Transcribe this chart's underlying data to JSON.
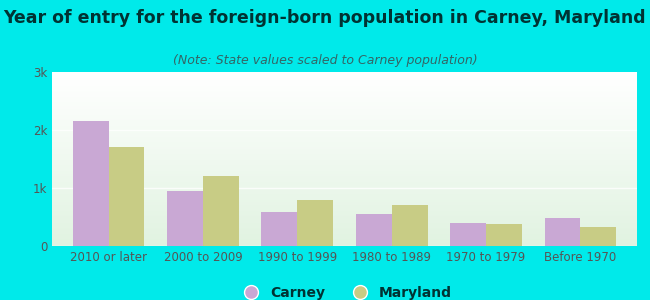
{
  "title": "Year of entry for the foreign-born population in Carney, Maryland",
  "subtitle": "(Note: State values scaled to Carney population)",
  "categories": [
    "2010 or later",
    "2000 to 2009",
    "1990 to 1999",
    "1980 to 1989",
    "1970 to 1979",
    "Before 1970"
  ],
  "carney_values": [
    2150,
    950,
    580,
    560,
    400,
    480
  ],
  "maryland_values": [
    1700,
    1200,
    800,
    700,
    380,
    330
  ],
  "carney_color": "#c9a8d4",
  "maryland_color": "#c8cc85",
  "background_outer": "#00eaea",
  "ylim": [
    0,
    3000
  ],
  "yticks": [
    0,
    1000,
    2000,
    3000
  ],
  "ytick_labels": [
    "0",
    "1k",
    "2k",
    "3k"
  ],
  "bar_width": 0.38,
  "legend_labels": [
    "Carney",
    "Maryland"
  ],
  "title_fontsize": 12.5,
  "subtitle_fontsize": 9,
  "tick_fontsize": 8.5,
  "legend_fontsize": 10,
  "title_color": "#003333",
  "subtitle_color": "#336666",
  "tick_color": "#555555"
}
